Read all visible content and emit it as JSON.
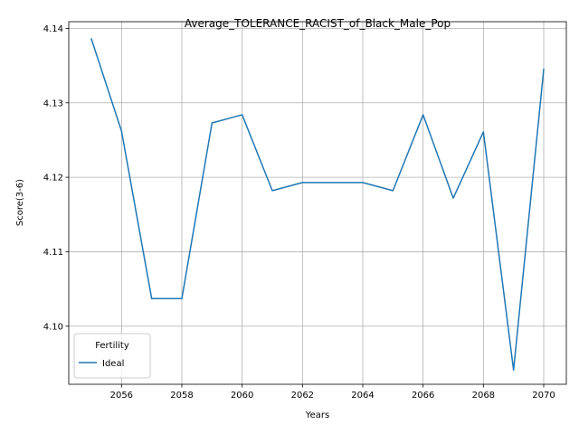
{
  "chart_data": {
    "type": "line",
    "title": "Average_TOLERANCE_RACIST_of_Black_Male_Pop",
    "xlabel": "Years",
    "ylabel": "Score(3-6)",
    "xlim": [
      2054.25,
      2070.75
    ],
    "ylim": [
      4.0922,
      4.1409
    ],
    "xticks": [
      2056,
      2058,
      2060,
      2062,
      2064,
      2066,
      2068,
      2070
    ],
    "yticks": [
      4.1,
      4.11,
      4.12,
      4.13,
      4.14
    ],
    "ytick_labels": [
      "4.10",
      "4.11",
      "4.12",
      "4.13",
      "4.14"
    ],
    "grid": true,
    "legend": {
      "title": "Fertility",
      "position": "lower-left"
    },
    "x": [
      2055,
      2056,
      2057,
      2058,
      2059,
      2060,
      2061,
      2062,
      2063,
      2064,
      2065,
      2066,
      2067,
      2068,
      2069,
      2070
    ],
    "series": [
      {
        "name": "Ideal",
        "color": "#1f77b4",
        "values": [
          4.1386,
          4.1262,
          4.1037,
          4.1037,
          4.1273,
          4.1284,
          4.1182,
          4.1193,
          4.1193,
          4.1193,
          4.1182,
          4.1284,
          4.1172,
          4.1261,
          4.0941,
          4.1345
        ]
      }
    ]
  }
}
